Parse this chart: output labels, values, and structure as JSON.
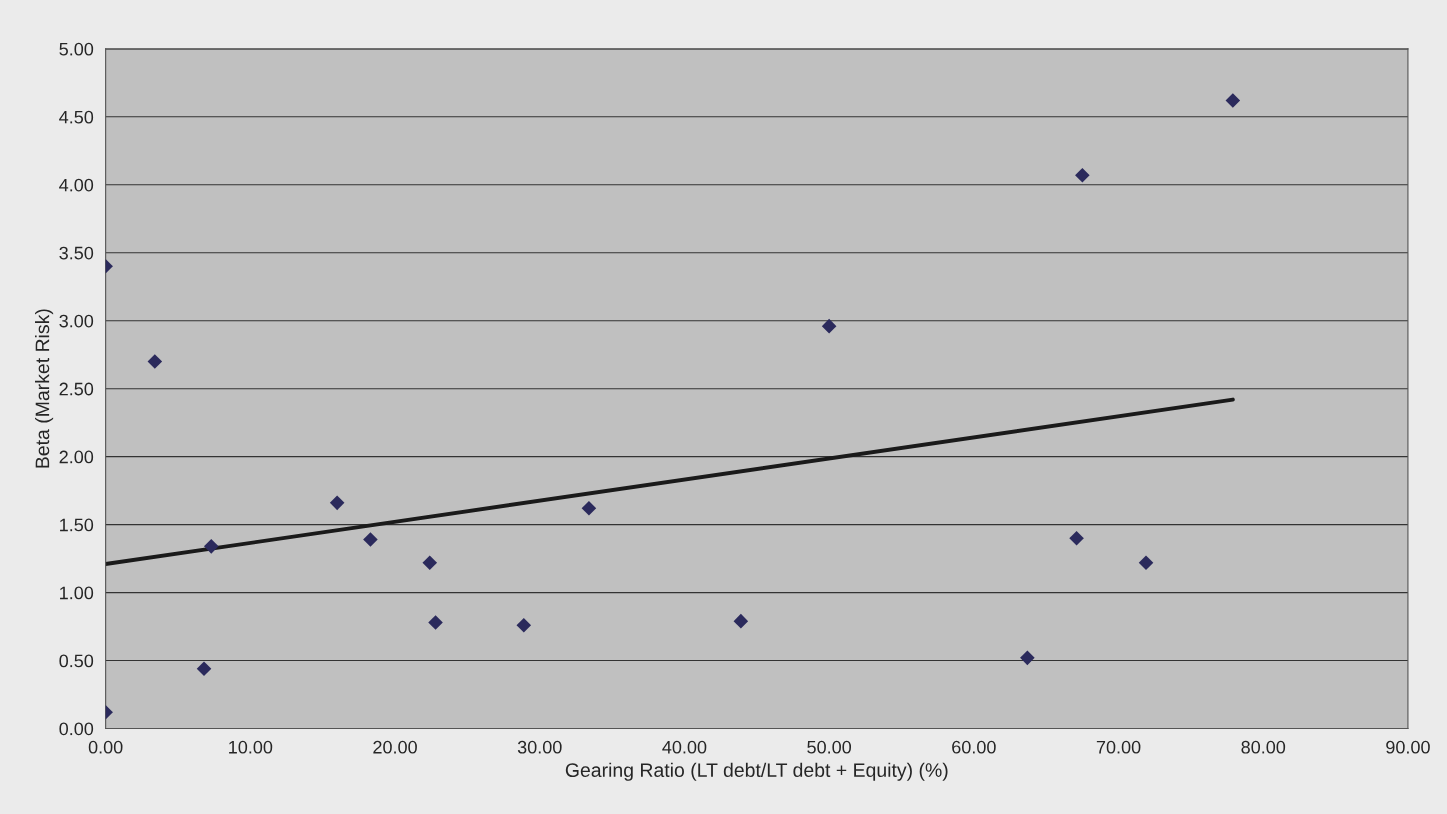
{
  "chart_data": {
    "type": "scatter",
    "xlabel": "Gearing Ratio (LT debt/LT debt + Equity) (%)",
    "ylabel": "Beta (Market Risk)",
    "series": [
      {
        "color": "#2b2a5c",
        "marker": "diamond",
        "x": [
          0,
          0,
          3.4,
          6.8,
          7.3,
          16.0,
          18.3,
          22.4,
          22.8,
          28.9,
          33.4,
          43.9,
          50.0,
          63.7,
          67.1,
          67.5,
          71.9,
          77.9
        ],
        "values": [
          3.4,
          0.12,
          2.7,
          0.44,
          1.34,
          1.66,
          1.39,
          1.22,
          0.78,
          0.76,
          1.62,
          0.79,
          2.96,
          0.52,
          1.4,
          4.07,
          1.22,
          4.62
        ]
      },
      {
        "type": "line",
        "color": "#1a1a1a",
        "marker": "none",
        "x": [
          0,
          77.9
        ],
        "values": [
          1.21,
          2.42
        ]
      }
    ],
    "xlim": [
      0,
      90
    ],
    "ylim": [
      0,
      5
    ],
    "xticks": [
      {
        "value": 0,
        "label": "0.00"
      },
      {
        "value": 10,
        "label": "10.00"
      },
      {
        "value": 20,
        "label": "20.00"
      },
      {
        "value": 30,
        "label": "30.00"
      },
      {
        "value": 40,
        "label": "40.00"
      },
      {
        "value": 50,
        "label": "50.00"
      },
      {
        "value": 60,
        "label": "60.00"
      },
      {
        "value": 70,
        "label": "70.00"
      },
      {
        "value": 80,
        "label": "80.00"
      },
      {
        "value": 90,
        "label": "90.00"
      }
    ],
    "yticks": [
      {
        "value": 0,
        "label": "0.00"
      },
      {
        "value": 0.5,
        "label": "0.50"
      },
      {
        "value": 1,
        "label": "1.00"
      },
      {
        "value": 1.5,
        "label": "1.50"
      },
      {
        "value": 2,
        "label": "2.00"
      },
      {
        "value": 2.5,
        "label": "2.50"
      },
      {
        "value": 3,
        "label": "3.00"
      },
      {
        "value": 3.5,
        "label": "3.50"
      },
      {
        "value": 4,
        "label": "4.00"
      },
      {
        "value": 4.5,
        "label": "4.50"
      },
      {
        "value": 5,
        "label": "5.00"
      }
    ],
    "grid": "y",
    "legend": false
  }
}
